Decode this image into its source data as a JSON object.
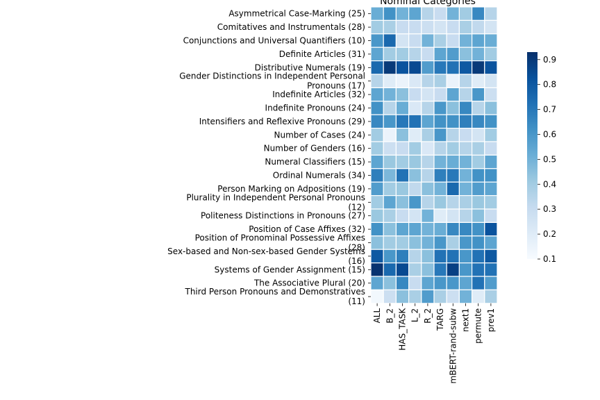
{
  "chart_data": {
    "type": "heatmap",
    "title": "Nominal Categories",
    "rows": [
      [
        "Asymmetrical Case-Marking (25)"
      ],
      [
        "Comitatives and Instrumentals (28)"
      ],
      [
        "Conjunctions and Universal Quantifiers (10)"
      ],
      [
        "Definite Articles (31)"
      ],
      [
        "Distributive Numerals (19)"
      ],
      [
        "Gender Distinctions in Independent Personal",
        "Pronouns (17)"
      ],
      [
        "Indefinite Articles (32)"
      ],
      [
        "Indefinite Pronouns (24)"
      ],
      [
        "Intensifiers and Reflexive Pronouns (29)"
      ],
      [
        "Number of Cases (24)"
      ],
      [
        "Number of Genders (16)"
      ],
      [
        "Numeral Classifiers (15)"
      ],
      [
        "Ordinal Numerals (34)"
      ],
      [
        "Person Marking on Adpositions (19)"
      ],
      [
        "Plurality in Independent Personal Pronouns",
        "(12)"
      ],
      [
        "Politeness Distinctions in Pronouns (27)"
      ],
      [
        "Position of Case Affixes (32)"
      ],
      [
        "Position of Pronominal Possessive Affixes",
        "(28)"
      ],
      [
        "Sex-based and Non-sex-based Gender Systems",
        "(16)"
      ],
      [
        "Systems of Gender Assignment (15)"
      ],
      [
        "The Associative Plural (20)"
      ],
      [
        "Third Person Pronouns and Demonstratives",
        "(11)"
      ]
    ],
    "columns": [
      "ALL",
      "B_2",
      "HAS_TASK",
      "L_2",
      "R_2",
      "TARG",
      "mBERT-rand-subw",
      "next1",
      "permute",
      "prev1"
    ],
    "values": [
      [
        0.52,
        0.62,
        0.5,
        0.55,
        0.35,
        0.3,
        0.5,
        0.4,
        0.65,
        0.35
      ],
      [
        0.4,
        0.38,
        0.3,
        0.3,
        0.28,
        0.25,
        0.3,
        0.38,
        0.32,
        0.25
      ],
      [
        0.6,
        0.75,
        0.25,
        0.3,
        0.5,
        0.38,
        0.3,
        0.5,
        0.55,
        0.52
      ],
      [
        0.55,
        0.4,
        0.4,
        0.35,
        0.3,
        0.55,
        0.58,
        0.45,
        0.5,
        0.4
      ],
      [
        0.75,
        0.9,
        0.82,
        0.85,
        0.58,
        0.7,
        0.72,
        0.8,
        0.9,
        0.82
      ],
      [
        0.35,
        0.2,
        0.15,
        0.22,
        0.35,
        0.38,
        0.15,
        0.35,
        0.2,
        0.25
      ],
      [
        0.55,
        0.5,
        0.45,
        0.3,
        0.25,
        0.3,
        0.55,
        0.35,
        0.6,
        0.28
      ],
      [
        0.62,
        0.35,
        0.52,
        0.22,
        0.35,
        0.6,
        0.45,
        0.65,
        0.35,
        0.45
      ],
      [
        0.65,
        0.6,
        0.7,
        0.72,
        0.55,
        0.62,
        0.62,
        0.68,
        0.65,
        0.62
      ],
      [
        0.4,
        0.15,
        0.45,
        0.2,
        0.38,
        0.6,
        0.35,
        0.3,
        0.25,
        0.4
      ],
      [
        0.4,
        0.28,
        0.3,
        0.4,
        0.22,
        0.35,
        0.4,
        0.35,
        0.38,
        0.3
      ],
      [
        0.55,
        0.42,
        0.4,
        0.42,
        0.35,
        0.5,
        0.52,
        0.5,
        0.4,
        0.55
      ],
      [
        0.68,
        0.48,
        0.72,
        0.45,
        0.35,
        0.68,
        0.7,
        0.5,
        0.62,
        0.62
      ],
      [
        0.58,
        0.4,
        0.42,
        0.32,
        0.45,
        0.5,
        0.75,
        0.5,
        0.58,
        0.55
      ],
      [
        0.4,
        0.55,
        0.45,
        0.6,
        0.35,
        0.42,
        0.35,
        0.38,
        0.42,
        0.4
      ],
      [
        0.42,
        0.38,
        0.3,
        0.25,
        0.5,
        0.2,
        0.25,
        0.35,
        0.45,
        0.3
      ],
      [
        0.62,
        0.45,
        0.55,
        0.55,
        0.5,
        0.52,
        0.65,
        0.65,
        0.62,
        0.82
      ],
      [
        0.45,
        0.4,
        0.4,
        0.45,
        0.5,
        0.6,
        0.38,
        0.6,
        0.62,
        0.55
      ],
      [
        0.8,
        0.6,
        0.68,
        0.35,
        0.45,
        0.72,
        0.72,
        0.6,
        0.72,
        0.8
      ],
      [
        0.92,
        0.75,
        0.85,
        0.38,
        0.45,
        0.7,
        0.88,
        0.6,
        0.72,
        0.72
      ],
      [
        0.55,
        0.45,
        0.65,
        0.3,
        0.55,
        0.6,
        0.6,
        0.55,
        0.72,
        0.58
      ],
      [
        0.12,
        0.28,
        0.45,
        0.38,
        0.58,
        0.38,
        0.28,
        0.5,
        0.2,
        0.38
      ]
    ],
    "colorbar": {
      "min": 0.1,
      "max": 0.93,
      "ticks": [
        "0.1",
        "0.2",
        "0.3",
        "0.4",
        "0.5",
        "0.6",
        "0.7",
        "0.8",
        "0.9"
      ],
      "colormap": "Blues"
    },
    "grid": true
  }
}
